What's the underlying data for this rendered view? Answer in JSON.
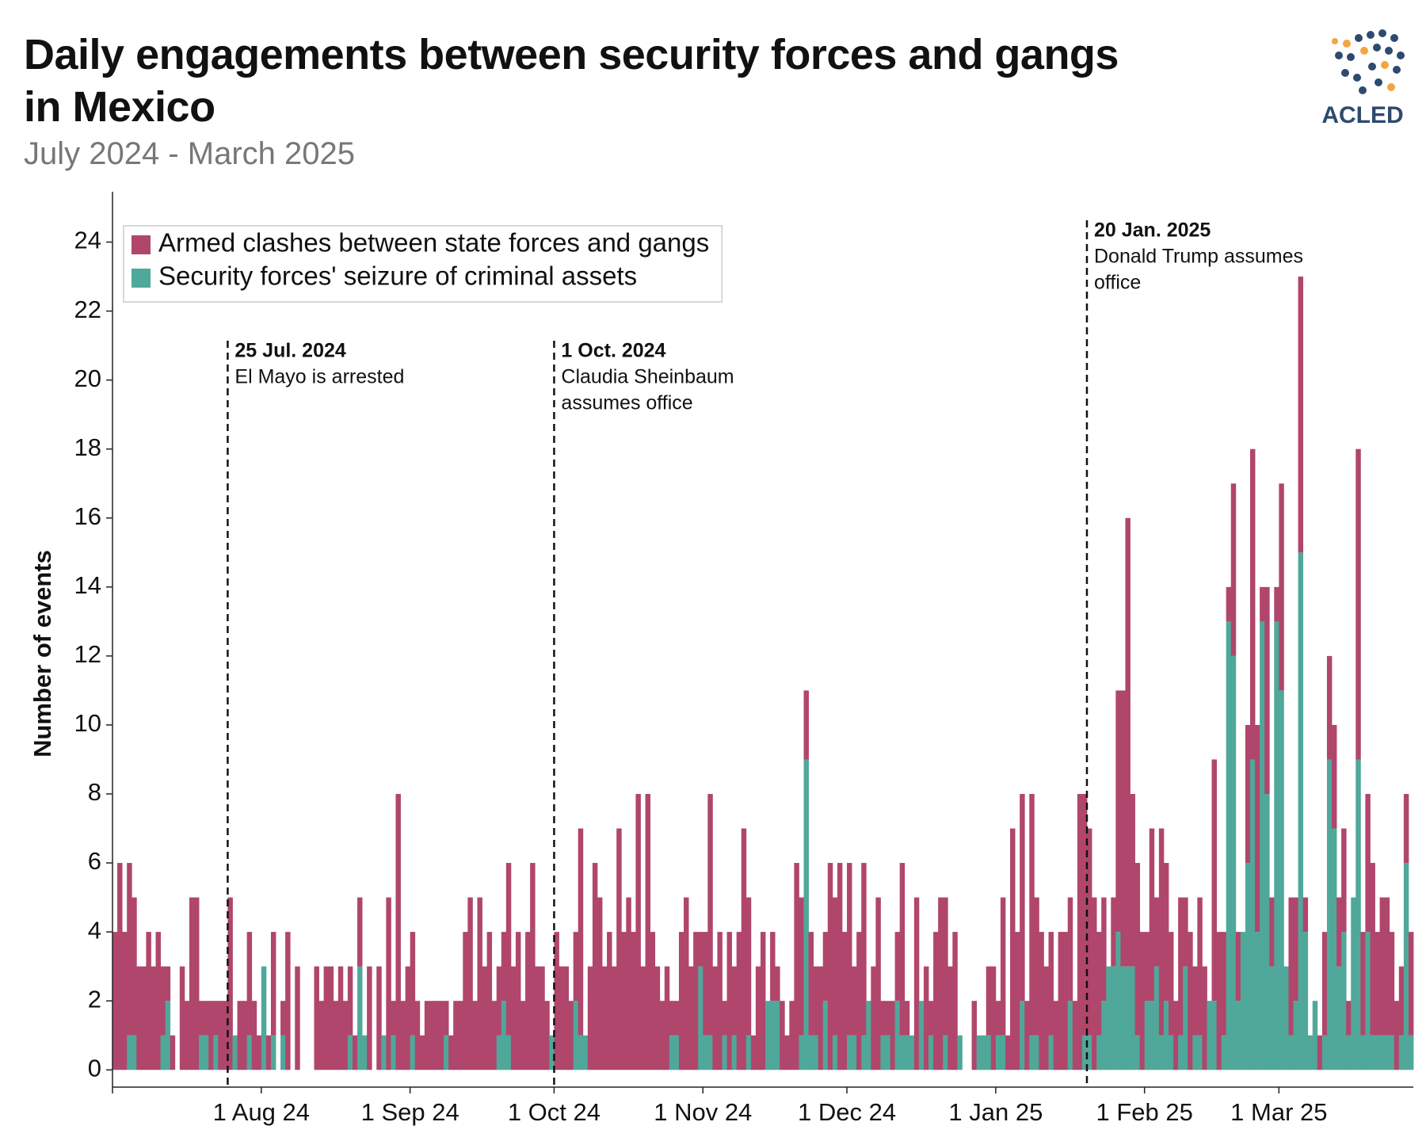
{
  "logo_text": "ACLED",
  "chart_data": {
    "type": "stacked_bar",
    "title": "Daily engagements between security forces and gangs in Mexico",
    "subtitle": "July 2024 - March 2025",
    "y_label": "Number of events",
    "ylim": [
      -0.5,
      25
    ],
    "yticks": [
      0,
      2,
      4,
      6,
      8,
      10,
      12,
      14,
      16,
      18,
      20,
      22,
      24
    ],
    "xlim": [
      "2024-07-01",
      "2025-03-29"
    ],
    "xticks": [
      {
        "value": "2024-08-01",
        "label": "1 Aug 24"
      },
      {
        "value": "2024-09-01",
        "label": "1 Sep 24"
      },
      {
        "value": "2024-10-01",
        "label": "1 Oct 24"
      },
      {
        "value": "2024-11-01",
        "label": "1 Nov 24"
      },
      {
        "value": "2024-12-01",
        "label": "1 Dec 24"
      },
      {
        "value": "2025-01-01",
        "label": "1 Jan 25"
      },
      {
        "value": "2025-02-01",
        "label": "1 Feb 25"
      },
      {
        "value": "2025-03-01",
        "label": "1 Mar 25"
      }
    ],
    "legend": "top-left",
    "annotations": [
      {
        "x": "2024-07-25",
        "label": "25 Jul. 2024",
        "text": [
          "El Mayo is arrested"
        ]
      },
      {
        "x": "2024-10-01",
        "label": "1 Oct. 2024",
        "text": [
          "Claudia Sheinbaum",
          "assumes office"
        ]
      },
      {
        "x": "2025-01-20",
        "label": "20 Jan. 2025",
        "text": [
          "Donald Trump assumes",
          "office"
        ]
      }
    ],
    "x": [
      "2024-07-01",
      "2024-07-02",
      "2024-07-03",
      "2024-07-04",
      "2024-07-05",
      "2024-07-06",
      "2024-07-07",
      "2024-07-08",
      "2024-07-09",
      "2024-07-10",
      "2024-07-11",
      "2024-07-12",
      "2024-07-13",
      "2024-07-14",
      "2024-07-15",
      "2024-07-16",
      "2024-07-17",
      "2024-07-18",
      "2024-07-19",
      "2024-07-20",
      "2024-07-21",
      "2024-07-22",
      "2024-07-23",
      "2024-07-24",
      "2024-07-25",
      "2024-07-26",
      "2024-07-27",
      "2024-07-28",
      "2024-07-29",
      "2024-07-30",
      "2024-07-31",
      "2024-08-01",
      "2024-08-02",
      "2024-08-03",
      "2024-08-04",
      "2024-08-05",
      "2024-08-06",
      "2024-08-07",
      "2024-08-08",
      "2024-08-09",
      "2024-08-10",
      "2024-08-11",
      "2024-08-12",
      "2024-08-13",
      "2024-08-14",
      "2024-08-15",
      "2024-08-16",
      "2024-08-17",
      "2024-08-18",
      "2024-08-19",
      "2024-08-20",
      "2024-08-21",
      "2024-08-22",
      "2024-08-23",
      "2024-08-24",
      "2024-08-25",
      "2024-08-26",
      "2024-08-27",
      "2024-08-28",
      "2024-08-29",
      "2024-08-30",
      "2024-08-31",
      "2024-09-01",
      "2024-09-02",
      "2024-09-03",
      "2024-09-04",
      "2024-09-05",
      "2024-09-06",
      "2024-09-07",
      "2024-09-08",
      "2024-09-09",
      "2024-09-10",
      "2024-09-11",
      "2024-09-12",
      "2024-09-13",
      "2024-09-14",
      "2024-09-15",
      "2024-09-16",
      "2024-09-17",
      "2024-09-18",
      "2024-09-19",
      "2024-09-20",
      "2024-09-21",
      "2024-09-22",
      "2024-09-23",
      "2024-09-24",
      "2024-09-25",
      "2024-09-26",
      "2024-09-27",
      "2024-09-28",
      "2024-09-29",
      "2024-09-30",
      "2024-10-01",
      "2024-10-02",
      "2024-10-03",
      "2024-10-04",
      "2024-10-05",
      "2024-10-06",
      "2024-10-07",
      "2024-10-08",
      "2024-10-09",
      "2024-10-10",
      "2024-10-11",
      "2024-10-12",
      "2024-10-13",
      "2024-10-14",
      "2024-10-15",
      "2024-10-16",
      "2024-10-17",
      "2024-10-18",
      "2024-10-19",
      "2024-10-20",
      "2024-10-21",
      "2024-10-22",
      "2024-10-23",
      "2024-10-24",
      "2024-10-25",
      "2024-10-26",
      "2024-10-27",
      "2024-10-28",
      "2024-10-29",
      "2024-10-30",
      "2024-10-31",
      "2024-11-01",
      "2024-11-02",
      "2024-11-03",
      "2024-11-04",
      "2024-11-05",
      "2024-11-06",
      "2024-11-07",
      "2024-11-08",
      "2024-11-09",
      "2024-11-10",
      "2024-11-11",
      "2024-11-12",
      "2024-11-13",
      "2024-11-14",
      "2024-11-15",
      "2024-11-16",
      "2024-11-17",
      "2024-11-18",
      "2024-11-19",
      "2024-11-20",
      "2024-11-21",
      "2024-11-22",
      "2024-11-23",
      "2024-11-24",
      "2024-11-25",
      "2024-11-26",
      "2024-11-27",
      "2024-11-28",
      "2024-11-29",
      "2024-11-30",
      "2024-12-01",
      "2024-12-02",
      "2024-12-03",
      "2024-12-04",
      "2024-12-05",
      "2024-12-06",
      "2024-12-07",
      "2024-12-08",
      "2024-12-09",
      "2024-12-10",
      "2024-12-11",
      "2024-12-12",
      "2024-12-13",
      "2024-12-14",
      "2024-12-15",
      "2024-12-16",
      "2024-12-17",
      "2024-12-18",
      "2024-12-19",
      "2024-12-20",
      "2024-12-21",
      "2024-12-22",
      "2024-12-23",
      "2024-12-24",
      "2024-12-25",
      "2024-12-26",
      "2024-12-27",
      "2024-12-28",
      "2024-12-29",
      "2024-12-30",
      "2024-12-31",
      "2025-01-01",
      "2025-01-02",
      "2025-01-03",
      "2025-01-04",
      "2025-01-05",
      "2025-01-06",
      "2025-01-07",
      "2025-01-08",
      "2025-01-09",
      "2025-01-10",
      "2025-01-11",
      "2025-01-12",
      "2025-01-13",
      "2025-01-14",
      "2025-01-15",
      "2025-01-16",
      "2025-01-17",
      "2025-01-18",
      "2025-01-19",
      "2025-01-20",
      "2025-01-21",
      "2025-01-22",
      "2025-01-23",
      "2025-01-24",
      "2025-01-25",
      "2025-01-26",
      "2025-01-27",
      "2025-01-28",
      "2025-01-29",
      "2025-01-30",
      "2025-01-31",
      "2025-02-01",
      "2025-02-02",
      "2025-02-03",
      "2025-02-04",
      "2025-02-05",
      "2025-02-06",
      "2025-02-07",
      "2025-02-08",
      "2025-02-09",
      "2025-02-10",
      "2025-02-11",
      "2025-02-12",
      "2025-02-13",
      "2025-02-14",
      "2025-02-15",
      "2025-02-16",
      "2025-02-17",
      "2025-02-18",
      "2025-02-19",
      "2025-02-20",
      "2025-02-21",
      "2025-02-22",
      "2025-02-23",
      "2025-02-24",
      "2025-02-25",
      "2025-02-26",
      "2025-02-27",
      "2025-02-28",
      "2025-03-01",
      "2025-03-02",
      "2025-03-03",
      "2025-03-04",
      "2025-03-05",
      "2025-03-06",
      "2025-03-07",
      "2025-03-08",
      "2025-03-09",
      "2025-03-10",
      "2025-03-11",
      "2025-03-12",
      "2025-03-13",
      "2025-03-14",
      "2025-03-15",
      "2025-03-16",
      "2025-03-17",
      "2025-03-18",
      "2025-03-19",
      "2025-03-20",
      "2025-03-21",
      "2025-03-22",
      "2025-03-23",
      "2025-03-24",
      "2025-03-25",
      "2025-03-26",
      "2025-03-27",
      "2025-03-28"
    ],
    "series": [
      {
        "name": "Armed clashes between state forces and gangs",
        "color": "#b0466b",
        "values": [
          4,
          6,
          4,
          5,
          4,
          3,
          3,
          4,
          3,
          4,
          2,
          1,
          1,
          0,
          3,
          2,
          5,
          5,
          1,
          1,
          2,
          1,
          2,
          2,
          5,
          0,
          2,
          2,
          3,
          2,
          1,
          0,
          1,
          3,
          0,
          1,
          4,
          0,
          3,
          0,
          0,
          0,
          3,
          2,
          3,
          3,
          2,
          3,
          2,
          2,
          1,
          2,
          0,
          3,
          0,
          3,
          0,
          5,
          1,
          8,
          2,
          3,
          3,
          2,
          1,
          2,
          2,
          2,
          2,
          1,
          1,
          2,
          2,
          4,
          5,
          2,
          5,
          3,
          4,
          2,
          2,
          2,
          5,
          3,
          4,
          2,
          4,
          6,
          3,
          3,
          2,
          0,
          4,
          3,
          3,
          2,
          2,
          6,
          0,
          3,
          6,
          5,
          3,
          4,
          3,
          7,
          4,
          5,
          4,
          8,
          3,
          8,
          4,
          3,
          2,
          3,
          1,
          1,
          4,
          5,
          3,
          4,
          1,
          3,
          7,
          3,
          4,
          1,
          4,
          2,
          4,
          7,
          4,
          1,
          3,
          4,
          0,
          2,
          1,
          2,
          1,
          2,
          6,
          4,
          2,
          3,
          2,
          3,
          2,
          6,
          4,
          6,
          4,
          5,
          2,
          4,
          5,
          0,
          3,
          5,
          1,
          1,
          2,
          2,
          5,
          1,
          0,
          5,
          0,
          3,
          1,
          4,
          5,
          4,
          3,
          4,
          0,
          0,
          0,
          2,
          0,
          0,
          2,
          3,
          1,
          4,
          1,
          7,
          4,
          6,
          2,
          7,
          4,
          4,
          3,
          3,
          2,
          4,
          4,
          3,
          2,
          8,
          7,
          6,
          5,
          3,
          3,
          0,
          2,
          7,
          8,
          13,
          5,
          5,
          4,
          2,
          5,
          2,
          6,
          4,
          3,
          2,
          4,
          2,
          4,
          2,
          4,
          3,
          0,
          7,
          4,
          3,
          1,
          5,
          2,
          0,
          4,
          9,
          6,
          1,
          6,
          2,
          1,
          6,
          0,
          4,
          3,
          8,
          1,
          0,
          0,
          1,
          3,
          3,
          3,
          2,
          3,
          1,
          0,
          9,
          3,
          4,
          5,
          3,
          4,
          4,
          3,
          2,
          2,
          2,
          3
        ]
      },
      {
        "name": "Security forces' seizure of criminal assets",
        "color": "#4fa89a",
        "values": [
          0,
          0,
          0,
          1,
          1,
          0,
          0,
          0,
          0,
          0,
          1,
          2,
          0,
          0,
          0,
          0,
          0,
          0,
          1,
          1,
          0,
          1,
          0,
          0,
          0,
          1,
          0,
          0,
          1,
          0,
          0,
          3,
          0,
          1,
          0,
          1,
          0,
          0,
          0,
          0,
          0,
          0,
          0,
          0,
          0,
          0,
          0,
          0,
          0,
          1,
          0,
          3,
          1,
          0,
          0,
          0,
          1,
          0,
          1,
          0,
          0,
          0,
          1,
          0,
          0,
          0,
          0,
          0,
          0,
          1,
          0,
          0,
          0,
          0,
          0,
          0,
          0,
          0,
          0,
          0,
          1,
          2,
          1,
          0,
          0,
          0,
          0,
          0,
          0,
          0,
          0,
          1,
          0,
          0,
          0,
          0,
          2,
          1,
          1,
          0,
          0,
          0,
          0,
          0,
          0,
          0,
          0,
          0,
          0,
          0,
          0,
          0,
          0,
          0,
          0,
          0,
          1,
          1,
          0,
          0,
          0,
          0,
          3,
          1,
          1,
          0,
          0,
          1,
          0,
          1,
          0,
          0,
          1,
          0,
          0,
          0,
          2,
          2,
          2,
          0,
          0,
          0,
          0,
          1,
          9,
          1,
          1,
          0,
          2,
          0,
          1,
          0,
          0,
          1,
          1,
          0,
          1,
          2,
          0,
          0,
          1,
          1,
          0,
          2,
          1,
          1,
          1,
          0,
          2,
          0,
          1,
          0,
          0,
          1,
          0,
          0,
          1,
          0,
          0,
          0,
          1,
          1,
          1,
          0,
          1,
          1,
          0,
          0,
          0,
          2,
          0,
          1,
          1,
          0,
          0,
          1,
          0,
          0,
          0,
          2,
          0,
          0,
          1,
          1,
          0,
          1,
          2,
          3,
          3,
          4,
          3,
          3,
          3,
          1,
          0,
          2,
          2,
          3,
          1,
          2,
          1,
          0,
          1,
          3,
          0,
          1,
          1,
          0,
          2,
          2,
          0,
          1,
          13,
          12,
          2,
          4,
          6,
          9,
          4,
          13,
          8,
          3,
          13,
          11,
          3,
          1,
          2,
          15,
          4,
          1,
          2,
          0,
          1,
          9,
          7,
          3,
          4,
          1,
          5,
          9,
          1,
          4,
          1,
          1,
          1,
          1,
          1,
          0,
          1,
          6,
          1
        ]
      }
    ]
  }
}
